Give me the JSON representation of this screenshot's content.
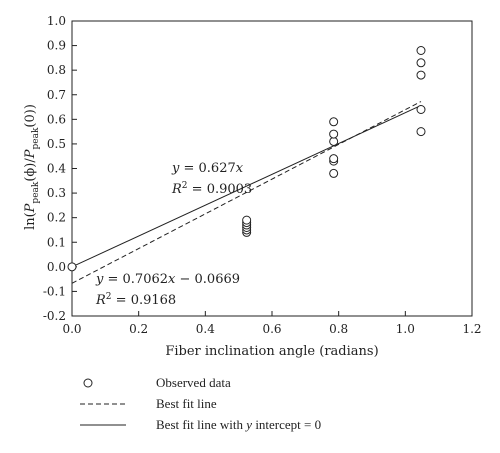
{
  "chart_data": {
    "type": "scatter",
    "xlabel": "Fiber inclination angle (radians)",
    "ylabel_parts": {
      "pre": "ln(",
      "p1": "P",
      "s1": "peak",
      "mid": "(ϕ)/",
      "p2": "P",
      "s2": "peak",
      "post": "(0))"
    },
    "xlim": [
      0.0,
      1.2
    ],
    "ylim": [
      -0.2,
      1.0
    ],
    "x_ticks": [
      "0.0",
      "0.2",
      "0.4",
      "0.6",
      "0.8",
      "1.0",
      "1.2"
    ],
    "y_ticks": [
      "-0.2",
      "-0.1",
      "0.0",
      "0.1",
      "0.2",
      "0.3",
      "0.4",
      "0.5",
      "0.6",
      "0.7",
      "0.8",
      "0.9",
      "1.0"
    ],
    "series": [
      {
        "name": "Observed data",
        "marker": "open-circle",
        "points": [
          [
            0.0,
            0.0
          ],
          [
            0.524,
            0.14
          ],
          [
            0.524,
            0.15
          ],
          [
            0.524,
            0.16
          ],
          [
            0.524,
            0.17
          ],
          [
            0.524,
            0.18
          ],
          [
            0.524,
            0.19
          ],
          [
            0.785,
            0.38
          ],
          [
            0.785,
            0.43
          ],
          [
            0.785,
            0.44
          ],
          [
            0.785,
            0.51
          ],
          [
            0.785,
            0.54
          ],
          [
            0.785,
            0.59
          ],
          [
            1.047,
            0.55
          ],
          [
            1.047,
            0.64
          ],
          [
            1.047,
            0.78
          ],
          [
            1.047,
            0.83
          ],
          [
            1.047,
            0.88
          ]
        ]
      },
      {
        "name": "Best fit line",
        "style": "dashed",
        "slope": 0.7062,
        "intercept": -0.0669,
        "x_range": [
          0.0,
          1.047
        ]
      },
      {
        "name": "Best fit line with y intercept = 0",
        "style": "solid",
        "slope": 0.627,
        "intercept": 0.0,
        "x_range": [
          0.0,
          1.047
        ]
      }
    ],
    "annotations": {
      "fit_zero": {
        "y": "y",
        "eq": " = 0.627",
        "x": "x",
        "r": "R",
        "sup": "2",
        "r_val": " = 0.9003"
      },
      "fit_best": {
        "y": "y",
        "eq": " = 0.7062",
        "x": "x",
        "rest": " − 0.0669",
        "r": "R",
        "sup": "2",
        "r_val": " = 0.9168"
      }
    }
  },
  "legend": [
    {
      "label": "Observed data",
      "swatch": "open-circle"
    },
    {
      "label": "Best fit line",
      "swatch": "dashed"
    },
    {
      "label_pre": "Best fit line with ",
      "label_italic": "y",
      "label_post": " intercept = 0",
      "swatch": "solid"
    }
  ]
}
